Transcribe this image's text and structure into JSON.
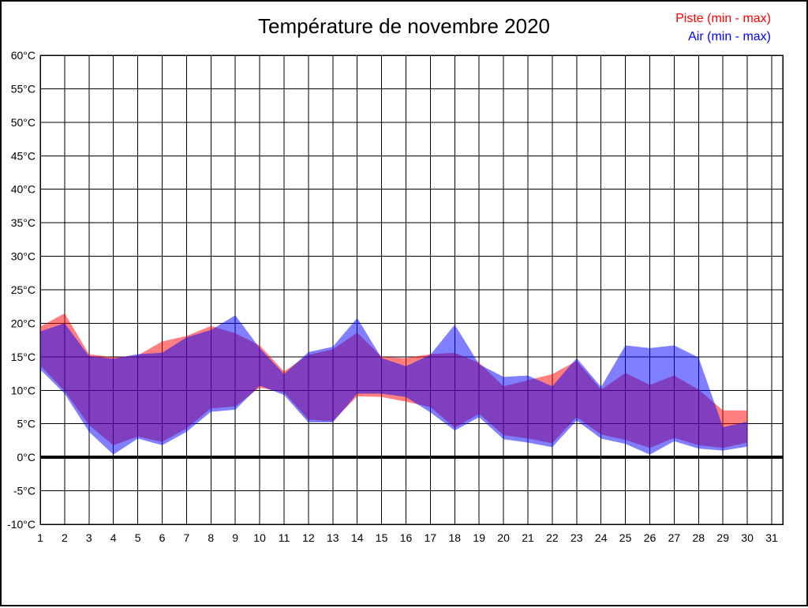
{
  "chart_data": {
    "type": "area",
    "title": "Température de novembre 2020",
    "legend_position": "top-right",
    "grid": true,
    "xlim": [
      1,
      31
    ],
    "ylim": [
      -10,
      60
    ],
    "y_tick_step": 5,
    "zero_line_bold": true,
    "x_tick_labels": [
      "1",
      "2",
      "3",
      "4",
      "5",
      "6",
      "7",
      "8",
      "9",
      "10",
      "11",
      "12",
      "13",
      "14",
      "15",
      "16",
      "17",
      "18",
      "19",
      "20",
      "21",
      "22",
      "23",
      "24",
      "25",
      "26",
      "27",
      "28",
      "29",
      "30",
      "31"
    ],
    "y_tick_labels": [
      "60°C",
      "55°C",
      "50°C",
      "45°C",
      "40°C",
      "35°C",
      "30°C",
      "25°C",
      "20°C",
      "15°C",
      "10°C",
      "5°C",
      "0°C",
      "-5°C",
      "-10°C"
    ],
    "y_tick_values": [
      60,
      55,
      50,
      45,
      40,
      35,
      30,
      25,
      20,
      15,
      10,
      5,
      0,
      -5,
      -10
    ],
    "days": [
      1,
      2,
      3,
      4,
      5,
      6,
      7,
      8,
      9,
      10,
      11,
      12,
      13,
      14,
      15,
      16,
      17,
      18,
      19,
      20,
      21,
      22,
      23,
      24,
      25,
      26,
      27,
      28,
      29,
      30
    ],
    "legend": [
      {
        "label": "Piste (min - max)",
        "color": "#FF0000"
      },
      {
        "label": "Air (min - max)",
        "color": "#0000FF"
      }
    ],
    "series": [
      {
        "name": "Piste (min - max)",
        "color": "#FF0000",
        "fill_opacity": 0.5,
        "min": [
          13.7,
          9.9,
          4.8,
          1.8,
          3.1,
          2.3,
          4.3,
          7.3,
          7.6,
          10.4,
          9.7,
          5.6,
          5.4,
          9.1,
          9.0,
          8.3,
          7.5,
          4.4,
          6.5,
          3.3,
          2.8,
          2.1,
          6.0,
          3.4,
          2.6,
          1.4,
          2.9,
          1.8,
          1.4,
          2.2
        ],
        "max": [
          19.5,
          21.5,
          15.4,
          14.9,
          15.2,
          17.3,
          18.1,
          19.6,
          18.5,
          16.7,
          12.8,
          15.3,
          16.1,
          18.6,
          15.0,
          14.8,
          15.4,
          15.6,
          14.1,
          10.6,
          11.5,
          12.4,
          14.4,
          10.1,
          12.6,
          10.8,
          12.2,
          10.1,
          7.0,
          7.0
        ]
      },
      {
        "name": "Air (min - max)",
        "color": "#0000FF",
        "fill_opacity": 0.5,
        "min": [
          13.1,
          9.5,
          3.8,
          0.4,
          2.8,
          1.8,
          3.8,
          6.8,
          7.1,
          10.7,
          9.3,
          5.2,
          5.2,
          9.5,
          9.5,
          9.0,
          6.7,
          4.0,
          6.0,
          2.7,
          2.2,
          1.5,
          5.5,
          2.8,
          2.0,
          0.4,
          2.4,
          1.3,
          1.0,
          1.6
        ],
        "max": [
          18.8,
          20.0,
          15.1,
          14.7,
          15.4,
          15.6,
          17.9,
          19.0,
          21.2,
          16.3,
          12.4,
          15.7,
          16.5,
          20.8,
          14.8,
          13.6,
          15.3,
          19.8,
          13.9,
          12.0,
          12.2,
          10.6,
          14.8,
          10.5,
          16.7,
          16.3,
          16.7,
          14.9,
          4.5,
          5.3
        ]
      }
    ]
  }
}
